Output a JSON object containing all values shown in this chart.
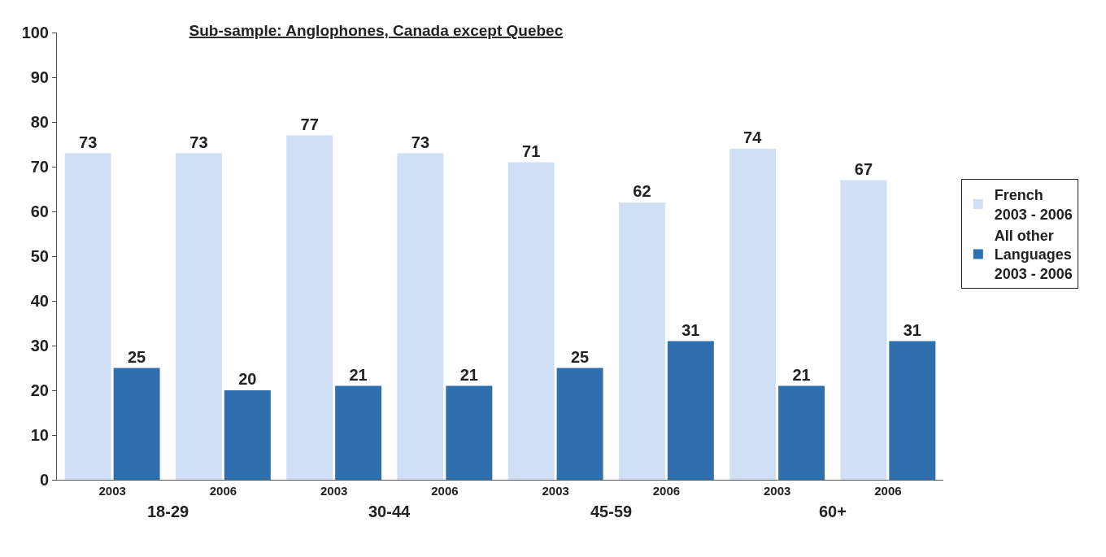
{
  "chart_data": {
    "type": "bar",
    "title": "Sub-sample: Anglophones, Canada except Quebec",
    "categories": [
      "2003",
      "2006",
      "2003",
      "2006",
      "2003",
      "2006",
      "2003",
      "2006"
    ],
    "series": [
      {
        "name": "French\n2003 - 2006",
        "color": "#cfe0f6",
        "values": [
          73,
          73,
          77,
          73,
          71,
          62,
          74,
          67
        ]
      },
      {
        "name": "All other\nLanguages\n2003 - 2006",
        "color": "#2f6fae",
        "values": [
          25,
          20,
          21,
          21,
          25,
          31,
          21,
          31
        ]
      }
    ],
    "annotations": [
      "18-29",
      "30-44",
      "45-59",
      "60+"
    ],
    "ylim": [
      0,
      100
    ],
    "yticks": [
      0,
      10,
      20,
      30,
      40,
      50,
      60,
      70,
      80,
      90,
      100
    ],
    "data_labels": true,
    "legend": "right"
  }
}
